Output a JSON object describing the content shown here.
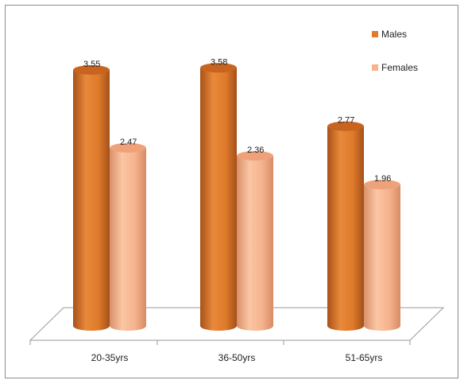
{
  "chart_data": {
    "type": "bar",
    "title": "",
    "xlabel": "",
    "ylabel": "",
    "categories": [
      "20-35yrs",
      "36-50yrs",
      "51-65yrs"
    ],
    "series": [
      {
        "name": "Males",
        "values": [
          3.55,
          3.58,
          2.77
        ],
        "color": "#E07B2B"
      },
      {
        "name": "Females",
        "values": [
          2.47,
          2.36,
          1.96
        ],
        "color": "#F7B48C"
      }
    ],
    "ylim": [
      0,
      4
    ],
    "grid": false,
    "legend": "top-right",
    "style": "3d-cylinder"
  }
}
